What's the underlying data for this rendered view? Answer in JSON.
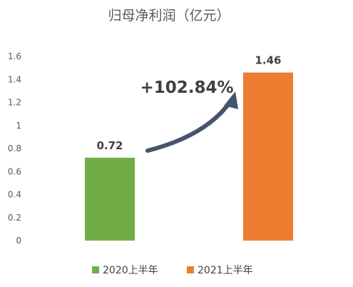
{
  "chart_data": {
    "type": "bar",
    "title": "归母净利润（亿元）",
    "categories": [
      "2020上半年",
      "2021上半年"
    ],
    "values": [
      0.72,
      1.46
    ],
    "value_labels": [
      "0.72",
      "1.46"
    ],
    "colors": [
      "#70AD47",
      "#ED7D31"
    ],
    "ylim": [
      0,
      1.6
    ],
    "yticks": [
      "0",
      "0.2",
      "0.4",
      "0.6",
      "0.8",
      "1",
      "1.2",
      "1.4",
      "1.6"
    ],
    "grid": false,
    "legend": "bottom",
    "annotation": "+102.84%",
    "arrow_color": "#44546A"
  }
}
